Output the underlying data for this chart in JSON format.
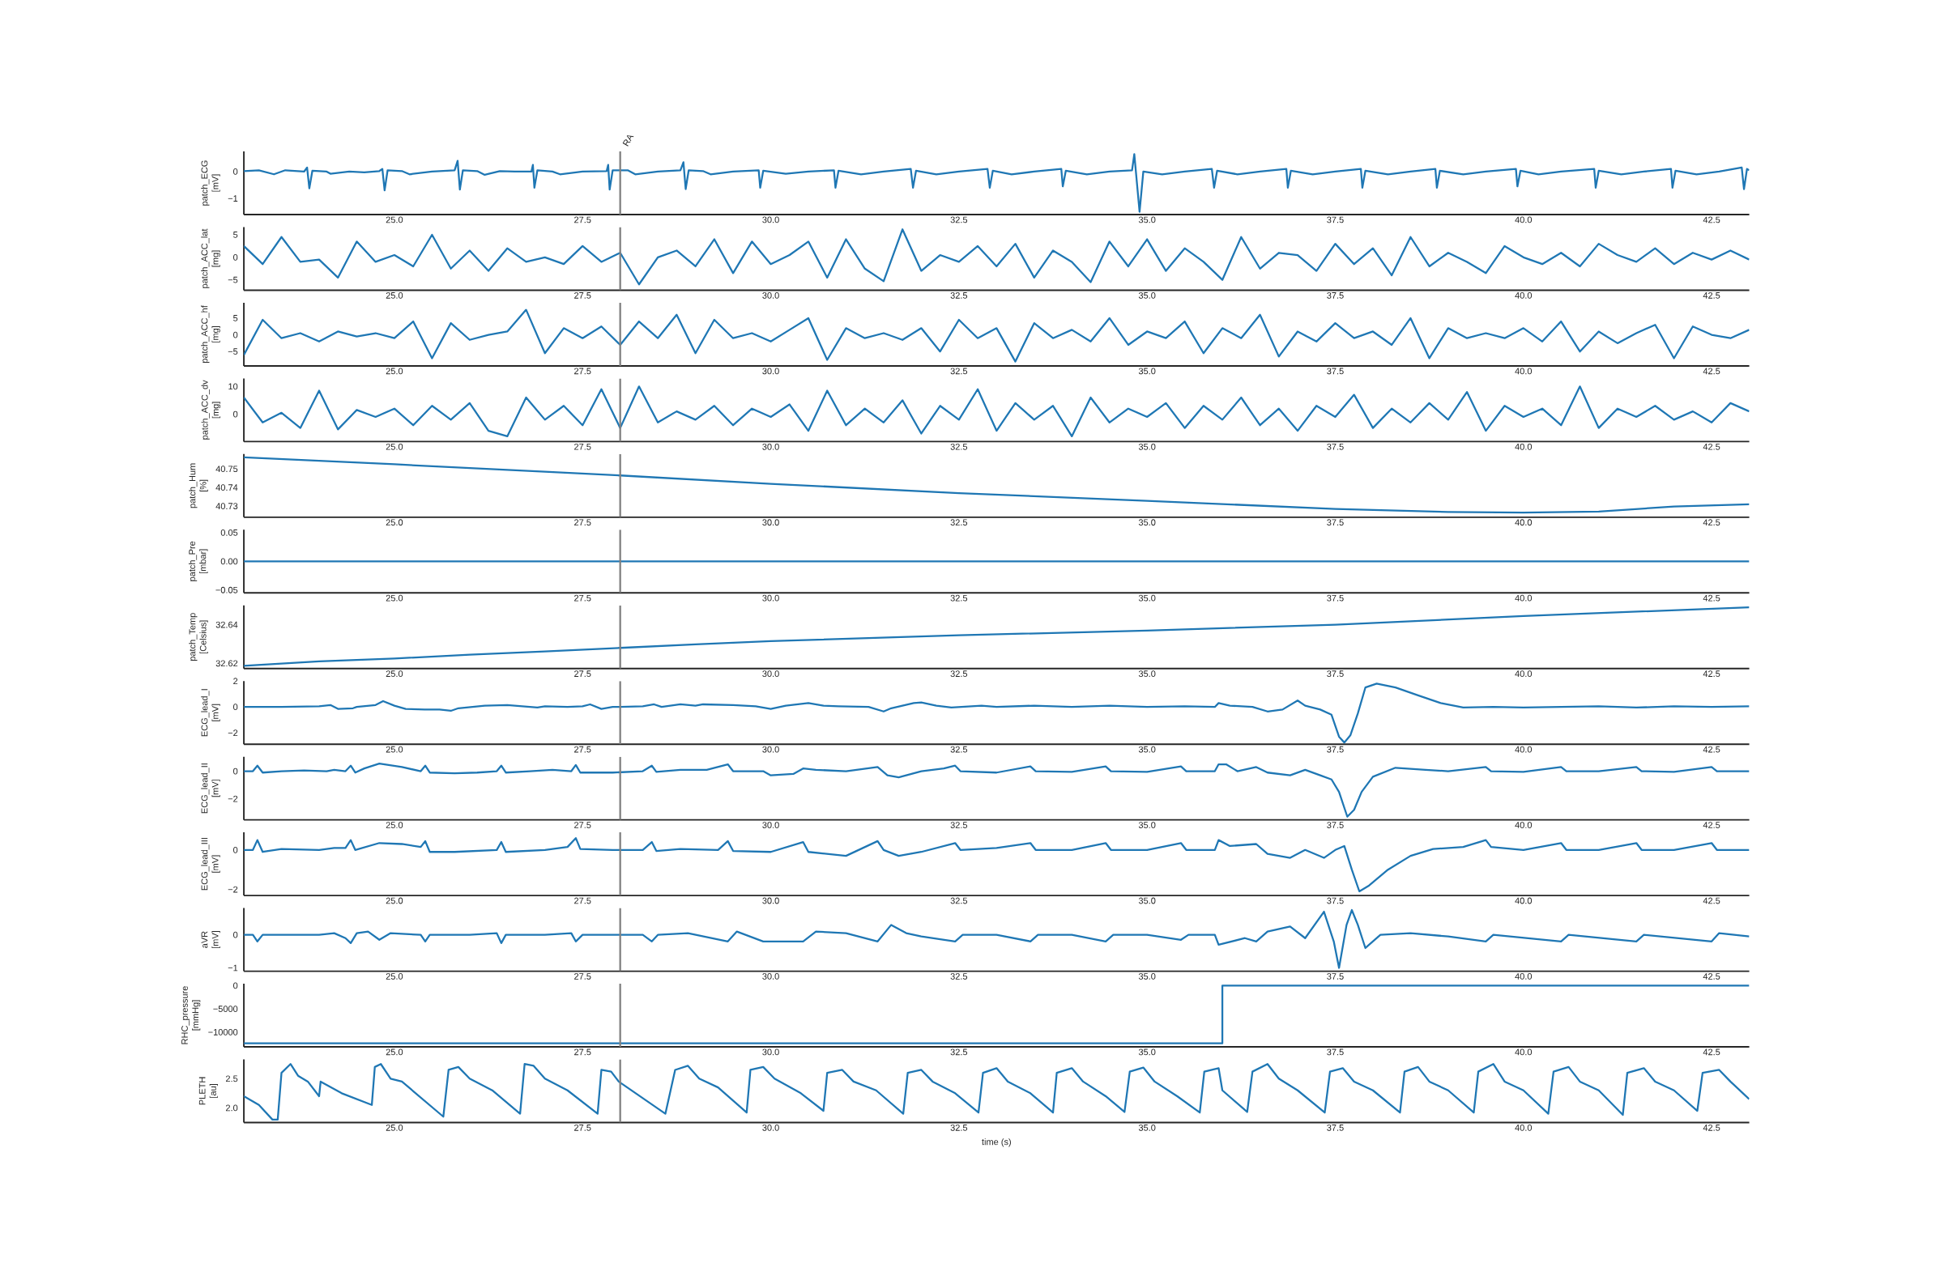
{
  "chart_data": [
    {
      "type": "line",
      "ylabel": "patch_ECG [mV]",
      "color": "#1f77b4",
      "xlim": [
        23.0,
        43.0
      ],
      "ylim": [
        -1.6,
        0.75
      ],
      "yticks": [
        {
          "value": -1,
          "label": "−1"
        },
        0
      ],
      "xticks": [
        {
          "value": 25,
          "label": "25.0"
        },
        {
          "value": 27.5,
          "label": "27.5"
        },
        {
          "value": 30,
          "label": "30.0"
        },
        {
          "value": 32.5,
          "label": "32.5"
        },
        {
          "value": 35,
          "label": "35.0"
        },
        {
          "value": 37.5,
          "label": "37.5"
        },
        {
          "value": 40,
          "label": "40.0"
        },
        {
          "value": 42.5,
          "label": "42.5"
        }
      ],
      "ref_lines": [
        {
          "axis": "x",
          "value": 28.0,
          "color": "#808080",
          "label": "RA"
        }
      ],
      "x": [
        23.0,
        23.2,
        23.4,
        23.55,
        23.8,
        23.84,
        23.87,
        23.91,
        24.1,
        24.15,
        24.4,
        24.6,
        24.8,
        24.84,
        24.87,
        24.91,
        25.1,
        25.2,
        25.5,
        25.8,
        25.84,
        25.87,
        25.91,
        26.1,
        26.2,
        26.4,
        26.6,
        26.82,
        26.84,
        26.86,
        26.9,
        27.1,
        27.2,
        27.5,
        27.82,
        27.84,
        27.86,
        27.9,
        28.1,
        28.2,
        28.5,
        28.8,
        28.84,
        28.87,
        28.91,
        29.1,
        29.2,
        29.5,
        29.84,
        29.86,
        29.9,
        30.2,
        30.5,
        30.84,
        30.86,
        30.9,
        31.2,
        31.5,
        31.86,
        31.89,
        31.93,
        32.2,
        32.5,
        32.88,
        32.91,
        32.95,
        33.2,
        33.5,
        33.86,
        33.88,
        33.92,
        34.2,
        34.5,
        34.8,
        34.83,
        34.9,
        34.95,
        35.2,
        35.5,
        35.86,
        35.89,
        35.93,
        36.2,
        36.5,
        36.85,
        36.87,
        36.91,
        37.2,
        37.5,
        37.84,
        37.86,
        37.9,
        38.2,
        38.5,
        38.83,
        38.85,
        38.89,
        39.2,
        39.5,
        39.9,
        39.92,
        39.96,
        40.2,
        40.5,
        40.94,
        40.96,
        41.0,
        41.3,
        41.6,
        41.96,
        41.98,
        42.02,
        42.3,
        42.6,
        42.9,
        42.93,
        42.97,
        43.0
      ],
      "values": [
        0.02,
        0.05,
        -0.1,
        0.05,
        0.0,
        0.15,
        -0.62,
        0.03,
        0.0,
        -0.08,
        0.0,
        -0.03,
        0.02,
        0.1,
        -0.7,
        0.05,
        0.02,
        -0.1,
        0.0,
        0.05,
        0.4,
        -0.67,
        0.05,
        0.02,
        -0.12,
        0.02,
        0.0,
        0.0,
        0.25,
        -0.6,
        0.05,
        0.0,
        -0.1,
        0.0,
        0.02,
        0.25,
        -0.67,
        0.05,
        0.05,
        -0.1,
        0.0,
        0.05,
        0.35,
        -0.65,
        0.05,
        0.02,
        -0.1,
        0.0,
        0.05,
        -0.6,
        0.03,
        -0.08,
        0.0,
        0.05,
        -0.6,
        0.03,
        -0.1,
        0.0,
        0.1,
        -0.6,
        0.03,
        -0.1,
        0.0,
        0.1,
        -0.6,
        0.03,
        -0.1,
        0.0,
        0.1,
        -0.55,
        0.03,
        -0.1,
        0.0,
        0.05,
        0.65,
        -1.5,
        0.0,
        -0.1,
        0.0,
        0.1,
        -0.6,
        0.03,
        -0.1,
        0.0,
        0.1,
        -0.6,
        0.03,
        -0.1,
        0.0,
        0.1,
        -0.6,
        0.03,
        -0.1,
        0.0,
        0.1,
        -0.6,
        0.03,
        -0.1,
        0.0,
        0.1,
        -0.55,
        0.03,
        -0.1,
        0.0,
        0.1,
        -0.6,
        0.03,
        -0.1,
        0.0,
        0.1,
        -0.6,
        0.03,
        -0.1,
        0.0,
        0.15,
        -0.65,
        0.1,
        0.05
      ]
    },
    {
      "type": "line",
      "ylabel": "patch_ACC_lat [mg]",
      "color": "#1f77b4",
      "xlim": [
        23.0,
        43.0
      ],
      "ylim": [
        -7.3,
        6.7
      ],
      "yticks": [
        {
          "value": -5,
          "label": "−5"
        },
        0,
        5
      ],
      "xticks": [
        {
          "value": 25,
          "label": "25.0"
        },
        {
          "value": 27.5,
          "label": "27.5"
        },
        {
          "value": 30,
          "label": "30.0"
        },
        {
          "value": 32.5,
          "label": "32.5"
        },
        {
          "value": 35,
          "label": "35.0"
        },
        {
          "value": 37.5,
          "label": "37.5"
        },
        {
          "value": 40,
          "label": "40.0"
        },
        {
          "value": 42.5,
          "label": "42.5"
        }
      ],
      "ref_lines": [
        {
          "axis": "x",
          "value": 28.0,
          "color": "#808080"
        }
      ],
      "x": [
        23.0,
        23.25,
        23.5,
        23.75,
        24.0,
        24.25,
        24.5,
        24.75,
        25.0,
        25.25,
        25.5,
        25.75,
        26.0,
        26.25,
        26.5,
        26.75,
        27.0,
        27.25,
        27.5,
        27.75,
        28.0,
        28.25,
        28.5,
        28.75,
        29.0,
        29.25,
        29.5,
        29.75,
        30.0,
        30.25,
        30.5,
        30.75,
        31.0,
        31.25,
        31.5,
        31.75,
        32.0,
        32.25,
        32.5,
        32.75,
        33.0,
        33.25,
        33.5,
        33.75,
        34.0,
        34.25,
        34.5,
        34.75,
        35.0,
        35.25,
        35.5,
        35.75,
        36.0,
        36.25,
        36.5,
        36.75,
        37.0,
        37.25,
        37.5,
        37.75,
        38.0,
        38.25,
        38.5,
        38.75,
        39.0,
        39.25,
        39.5,
        39.75,
        40.0,
        40.25,
        40.5,
        40.75,
        41.0,
        41.25,
        41.5,
        41.75,
        42.0,
        42.25,
        42.5,
        42.75,
        43.0
      ],
      "values": [
        2.5,
        -1.5,
        4.5,
        -1,
        -0.5,
        -4.5,
        3.5,
        -1,
        0.5,
        -2,
        5,
        -2.5,
        1.5,
        -3,
        2,
        -1,
        0,
        -1.5,
        2.5,
        -1,
        1,
        -6,
        0,
        1.5,
        -2,
        4,
        -3.5,
        3.5,
        -1.5,
        0.5,
        3.5,
        -4.5,
        4,
        -2.5,
        -5.3,
        6.2,
        -3,
        0.5,
        -1,
        2.5,
        -2,
        3,
        -4.5,
        1.5,
        -1,
        -5.5,
        3.5,
        -2,
        4,
        -3,
        2,
        -1,
        -5,
        4.5,
        -2.5,
        1,
        0.5,
        -3,
        3,
        -1.5,
        2,
        -4,
        4.5,
        -2,
        1,
        -1,
        -3.5,
        2.5,
        0,
        -1.5,
        1,
        -2,
        3,
        0.5,
        -1,
        2,
        -1.5,
        1,
        -0.5,
        1.5,
        -0.5
      ]
    },
    {
      "type": "line",
      "ylabel": "patch_ACC_hf [mg]",
      "color": "#1f77b4",
      "xlim": [
        23.0,
        43.0
      ],
      "ylim": [
        -9.3,
        9.6
      ],
      "yticks": [
        {
          "value": -5,
          "label": "−5"
        },
        0,
        5
      ],
      "xticks": [
        {
          "value": 25,
          "label": "25.0"
        },
        {
          "value": 27.5,
          "label": "27.5"
        },
        {
          "value": 30,
          "label": "30.0"
        },
        {
          "value": 32.5,
          "label": "32.5"
        },
        {
          "value": 35,
          "label": "35.0"
        },
        {
          "value": 37.5,
          "label": "37.5"
        },
        {
          "value": 40,
          "label": "40.0"
        },
        {
          "value": 42.5,
          "label": "42.5"
        }
      ],
      "ref_lines": [
        {
          "axis": "x",
          "value": 28.0,
          "color": "#808080"
        }
      ],
      "x": [
        23.0,
        23.25,
        23.5,
        23.75,
        24.0,
        24.25,
        24.5,
        24.75,
        25.0,
        25.25,
        25.5,
        25.75,
        26.0,
        26.25,
        26.5,
        26.75,
        27.0,
        27.25,
        27.5,
        27.75,
        28.0,
        28.25,
        28.5,
        28.75,
        29.0,
        29.25,
        29.5,
        29.75,
        30.0,
        30.25,
        30.5,
        30.75,
        31.0,
        31.25,
        31.5,
        31.75,
        32.0,
        32.25,
        32.5,
        32.75,
        33.0,
        33.25,
        33.5,
        33.75,
        34.0,
        34.25,
        34.5,
        34.75,
        35.0,
        35.25,
        35.5,
        35.75,
        36.0,
        36.25,
        36.5,
        36.75,
        37.0,
        37.25,
        37.5,
        37.75,
        38.0,
        38.25,
        38.5,
        38.75,
        39.0,
        39.25,
        39.5,
        39.75,
        40.0,
        40.25,
        40.5,
        40.75,
        41.0,
        41.25,
        41.5,
        41.75,
        42.0,
        42.25,
        42.5,
        42.75,
        43.0
      ],
      "values": [
        -6,
        4.5,
        -1,
        0.5,
        -2,
        1,
        -0.5,
        0.5,
        -1,
        4,
        -7,
        3.5,
        -1.5,
        0,
        1,
        7.5,
        -5.5,
        2,
        -1,
        2.5,
        -3,
        4,
        -1,
        6,
        -5.5,
        4.5,
        -1,
        0.5,
        -2,
        1.5,
        5,
        -7.5,
        2,
        -1,
        0.5,
        -1.5,
        2,
        -5,
        4.5,
        -1,
        2,
        -8,
        3.5,
        -1,
        1.5,
        -2,
        5,
        -3,
        1,
        -1,
        4,
        -5.5,
        2,
        -1,
        6,
        -6.5,
        1,
        -2,
        3.5,
        -1,
        1,
        -3,
        5,
        -7,
        2,
        -1,
        0.5,
        -1,
        2,
        -2,
        4,
        -5,
        1,
        -2.5,
        0.5,
        3,
        -7,
        2.5,
        0,
        -1,
        1.5
      ]
    },
    {
      "type": "line",
      "ylabel": "patch_ACC_dv [mg]",
      "color": "#1f77b4",
      "xlim": [
        23.0,
        43.0
      ],
      "ylim": [
        -9.9,
        12.9
      ],
      "yticks": [
        0,
        10
      ],
      "xticks": [
        {
          "value": 25,
          "label": "25.0"
        },
        {
          "value": 27.5,
          "label": "27.5"
        },
        {
          "value": 30,
          "label": "30.0"
        },
        {
          "value": 32.5,
          "label": "32.5"
        },
        {
          "value": 35,
          "label": "35.0"
        },
        {
          "value": 37.5,
          "label": "37.5"
        },
        {
          "value": 40,
          "label": "40.0"
        },
        {
          "value": 42.5,
          "label": "42.5"
        }
      ],
      "ref_lines": [
        {
          "axis": "x",
          "value": 28.0,
          "color": "#808080"
        }
      ],
      "x": [
        23.0,
        23.25,
        23.5,
        23.75,
        24.0,
        24.25,
        24.5,
        24.75,
        25.0,
        25.25,
        25.5,
        25.75,
        26.0,
        26.25,
        26.5,
        26.75,
        27.0,
        27.25,
        27.5,
        27.75,
        28.0,
        28.25,
        28.5,
        28.75,
        29.0,
        29.25,
        29.5,
        29.75,
        30.0,
        30.25,
        30.5,
        30.75,
        31.0,
        31.25,
        31.5,
        31.75,
        32.0,
        32.25,
        32.5,
        32.75,
        33.0,
        33.25,
        33.5,
        33.75,
        34.0,
        34.25,
        34.5,
        34.75,
        35.0,
        35.25,
        35.5,
        35.75,
        36.0,
        36.25,
        36.5,
        36.75,
        37.0,
        37.25,
        37.5,
        37.75,
        38.0,
        38.25,
        38.5,
        38.75,
        39.0,
        39.25,
        39.5,
        39.75,
        40.0,
        40.25,
        40.5,
        40.75,
        41.0,
        41.25,
        41.5,
        41.75,
        42.0,
        42.25,
        42.5,
        42.75,
        43.0
      ],
      "values": [
        6,
        -3,
        0.5,
        -5,
        8.5,
        -5.5,
        1.5,
        -1,
        2,
        -4,
        3,
        -2,
        4,
        -6,
        -8,
        6,
        -2,
        3,
        -4,
        9,
        -5,
        10,
        -3,
        1,
        -2,
        3,
        -4,
        2,
        -1,
        3.5,
        -6,
        8.5,
        -4,
        2,
        -3,
        5,
        -7,
        3,
        -2,
        9,
        -6,
        4,
        -2,
        3,
        -8,
        6,
        -3,
        2,
        -1,
        4,
        -5,
        3,
        -2,
        6,
        -4,
        2,
        -6,
        3,
        -1,
        7,
        -5,
        2,
        -3,
        4,
        -2,
        8,
        -6,
        3,
        -1,
        2,
        -4,
        10,
        -5,
        2,
        -1,
        3,
        -2,
        1,
        -3,
        4,
        1
      ]
    },
    {
      "type": "line",
      "ylabel": "patch_Hum [%]",
      "color": "#1f77b4",
      "xlim": [
        23.0,
        43.0
      ],
      "ylim": [
        40.724,
        40.758
      ],
      "yticks": [
        40.73,
        40.74,
        40.75
      ],
      "xticks": [
        {
          "value": 25,
          "label": "25.0"
        },
        {
          "value": 27.5,
          "label": "27.5"
        },
        {
          "value": 30,
          "label": "30.0"
        },
        {
          "value": 32.5,
          "label": "32.5"
        },
        {
          "value": 35,
          "label": "35.0"
        },
        {
          "value": 37.5,
          "label": "37.5"
        },
        {
          "value": 40,
          "label": "40.0"
        },
        {
          "value": 42.5,
          "label": "42.5"
        }
      ],
      "ref_lines": [
        {
          "axis": "x",
          "value": 28.0,
          "color": "#808080"
        }
      ],
      "x": [
        23.0,
        25.0,
        27.0,
        28.0,
        30.0,
        32.5,
        35.0,
        37.5,
        39.0,
        40.0,
        41.0,
        42.0,
        43.0
      ],
      "values": [
        40.7562,
        40.7525,
        40.7485,
        40.7465,
        40.742,
        40.737,
        40.7328,
        40.7285,
        40.7268,
        40.7265,
        40.727,
        40.7298,
        40.731
      ]
    },
    {
      "type": "line",
      "ylabel": "patch_Pre [mbar]",
      "color": "#1f77b4",
      "xlim": [
        23.0,
        43.0
      ],
      "ylim": [
        -0.055,
        0.055
      ],
      "yticks": [
        {
          "value": -0.05,
          "label": "−0.05"
        },
        {
          "value": 0,
          "label": "0.00"
        },
        {
          "value": 0.05,
          "label": "0.05"
        }
      ],
      "xticks": [
        {
          "value": 25,
          "label": "25.0"
        },
        {
          "value": 27.5,
          "label": "27.5"
        },
        {
          "value": 30,
          "label": "30.0"
        },
        {
          "value": 32.5,
          "label": "32.5"
        },
        {
          "value": 35,
          "label": "35.0"
        },
        {
          "value": 37.5,
          "label": "37.5"
        },
        {
          "value": 40,
          "label": "40.0"
        },
        {
          "value": 42.5,
          "label": "42.5"
        }
      ],
      "ref_lines": [
        {
          "axis": "x",
          "value": 28.0,
          "color": "#808080"
        }
      ],
      "x": [
        23.0,
        43.0
      ],
      "values": [
        0.0,
        0.0
      ]
    },
    {
      "type": "line",
      "ylabel": "patch_Temp [Celsius]",
      "color": "#1f77b4",
      "xlim": [
        23.0,
        43.0
      ],
      "ylim": [
        32.6173,
        32.65
      ],
      "yticks": [
        32.62,
        32.64
      ],
      "xticks": [
        {
          "value": 25,
          "label": "25.0"
        },
        {
          "value": 27.5,
          "label": "27.5"
        },
        {
          "value": 30,
          "label": "30.0"
        },
        {
          "value": 32.5,
          "label": "32.5"
        },
        {
          "value": 35,
          "label": "35.0"
        },
        {
          "value": 37.5,
          "label": "37.5"
        },
        {
          "value": 40,
          "label": "40.0"
        },
        {
          "value": 42.5,
          "label": "42.5"
        }
      ],
      "ref_lines": [
        {
          "axis": "x",
          "value": 28.0,
          "color": "#808080"
        }
      ],
      "x": [
        23.0,
        24.0,
        25.0,
        26.0,
        27.0,
        28.0,
        29.0,
        30.0,
        32.5,
        35.0,
        37.5,
        40.0,
        43.0
      ],
      "values": [
        32.6187,
        32.621,
        32.6225,
        32.6245,
        32.6262,
        32.628,
        32.6298,
        32.6315,
        32.6345,
        32.637,
        32.64,
        32.6445,
        32.649
      ]
    },
    {
      "type": "line",
      "ylabel": "ECG_lead_I [mV]",
      "color": "#1f77b4",
      "xlim": [
        23.0,
        43.0
      ],
      "ylim": [
        -2.88,
        2.0
      ],
      "yticks": [
        {
          "value": -2,
          "label": "−2"
        },
        0,
        2
      ],
      "xticks": [
        {
          "value": 25,
          "label": "25.0"
        },
        {
          "value": 27.5,
          "label": "27.5"
        },
        {
          "value": 30,
          "label": "30.0"
        },
        {
          "value": 32.5,
          "label": "32.5"
        },
        {
          "value": 35,
          "label": "35.0"
        },
        {
          "value": 37.5,
          "label": "37.5"
        },
        {
          "value": 40,
          "label": "40.0"
        },
        {
          "value": 42.5,
          "label": "42.5"
        }
      ],
      "ref_lines": [
        {
          "axis": "x",
          "value": 28.0,
          "color": "#808080"
        }
      ],
      "x": [
        23.0,
        23.5,
        24.0,
        24.15,
        24.25,
        24.45,
        24.5,
        24.75,
        24.85,
        25.0,
        25.15,
        25.4,
        25.6,
        25.75,
        25.85,
        26.2,
        26.5,
        26.9,
        27.0,
        27.3,
        27.5,
        27.6,
        27.75,
        27.9,
        28.0,
        28.3,
        28.45,
        28.55,
        28.8,
        29.0,
        29.1,
        29.5,
        29.8,
        30.0,
        30.2,
        30.5,
        30.7,
        30.9,
        31.3,
        31.5,
        31.6,
        31.9,
        32.0,
        32.2,
        32.4,
        32.8,
        33.0,
        33.5,
        34.0,
        34.5,
        35.0,
        35.5,
        35.9,
        35.95,
        36.1,
        36.4,
        36.6,
        36.8,
        37.0,
        37.1,
        37.3,
        37.45,
        37.55,
        37.62,
        37.7,
        37.8,
        37.9,
        38.05,
        38.3,
        38.6,
        38.9,
        39.2,
        39.6,
        40.0,
        40.5,
        41.0,
        41.5,
        42.0,
        42.5,
        43.0
      ],
      "values": [
        0,
        0.0,
        0.05,
        0.15,
        -0.15,
        -0.1,
        0.0,
        0.15,
        0.45,
        0.1,
        -0.15,
        -0.2,
        -0.2,
        -0.3,
        -0.1,
        0.1,
        0.15,
        -0.05,
        0.05,
        0.0,
        0.05,
        0.2,
        -0.15,
        0.0,
        0.0,
        0.05,
        0.2,
        0.0,
        0.2,
        0.1,
        0.2,
        0.15,
        0.05,
        -0.15,
        0.1,
        0.3,
        0.1,
        0.05,
        0.0,
        -0.35,
        -0.1,
        0.3,
        0.35,
        0.1,
        -0.05,
        0.1,
        0.0,
        0.1,
        0.0,
        0.1,
        0.0,
        0.05,
        0.0,
        0.3,
        0.1,
        0.0,
        -0.35,
        -0.2,
        0.5,
        0.1,
        -0.2,
        -0.6,
        -2.3,
        -2.75,
        -2.2,
        -0.5,
        1.5,
        1.8,
        1.5,
        0.9,
        0.3,
        -0.05,
        0.0,
        -0.05,
        0.0,
        0.05,
        -0.05,
        0.05,
        0.0,
        0.05
      ]
    },
    {
      "type": "line",
      "ylabel": "ECG_lead_II [mV]",
      "color": "#1f77b4",
      "xlim": [
        23.0,
        43.0
      ],
      "ylim": [
        -3.53,
        1.05
      ],
      "yticks": [
        {
          "value": -2,
          "label": "−2"
        },
        0
      ],
      "xticks": [
        {
          "value": 25,
          "label": "25.0"
        },
        {
          "value": 27.5,
          "label": "27.5"
        },
        {
          "value": 30,
          "label": "30.0"
        },
        {
          "value": 32.5,
          "label": "32.5"
        },
        {
          "value": 35,
          "label": "35.0"
        },
        {
          "value": 37.5,
          "label": "37.5"
        },
        {
          "value": 40,
          "label": "40.0"
        },
        {
          "value": 42.5,
          "label": "42.5"
        }
      ],
      "ref_lines": [
        {
          "axis": "x",
          "value": 28.0,
          "color": "#808080"
        }
      ],
      "x": [
        23.0,
        23.12,
        23.18,
        23.25,
        23.5,
        23.8,
        24.1,
        24.2,
        24.35,
        24.42,
        24.48,
        24.6,
        24.8,
        25.1,
        25.35,
        25.41,
        25.47,
        25.8,
        26.1,
        26.36,
        26.42,
        26.48,
        26.8,
        27.1,
        27.35,
        27.41,
        27.47,
        27.9,
        28.3,
        28.42,
        28.48,
        28.8,
        29.15,
        29.43,
        29.5,
        29.9,
        30.0,
        30.3,
        30.43,
        30.6,
        31.0,
        31.42,
        31.55,
        31.7,
        32.0,
        32.3,
        32.45,
        32.52,
        33.0,
        33.45,
        33.52,
        34.0,
        34.45,
        34.52,
        35.0,
        35.45,
        35.52,
        35.9,
        35.95,
        36.05,
        36.2,
        36.45,
        36.6,
        36.9,
        37.1,
        37.3,
        37.45,
        37.55,
        37.66,
        37.75,
        37.85,
        38.0,
        38.3,
        38.7,
        39.0,
        39.5,
        39.57,
        40.0,
        40.5,
        40.57,
        41.0,
        41.5,
        41.57,
        42.0,
        42.5,
        42.57,
        43.0
      ],
      "values": [
        0.0,
        0.0,
        0.4,
        -0.1,
        0.0,
        0.05,
        0.0,
        0.1,
        0.0,
        0.4,
        -0.1,
        0.2,
        0.55,
        0.3,
        0.0,
        0.4,
        -0.1,
        -0.15,
        -0.1,
        0.0,
        0.4,
        -0.1,
        0.0,
        0.1,
        0.0,
        0.45,
        -0.1,
        -0.1,
        0.0,
        0.4,
        -0.05,
        0.1,
        0.1,
        0.5,
        0.0,
        0.0,
        -0.3,
        -0.2,
        0.2,
        0.1,
        0.0,
        0.3,
        -0.3,
        -0.45,
        0.0,
        0.2,
        0.4,
        0.0,
        -0.1,
        0.35,
        0.0,
        -0.05,
        0.35,
        0.0,
        -0.05,
        0.35,
        0.0,
        0.0,
        0.5,
        0.5,
        0.0,
        0.3,
        -0.1,
        -0.3,
        0.1,
        -0.3,
        -0.6,
        -1.5,
        -3.3,
        -2.8,
        -1.5,
        -0.4,
        0.25,
        0.1,
        0.0,
        0.3,
        0.0,
        -0.05,
        0.3,
        0.0,
        0.0,
        0.3,
        0.0,
        -0.05,
        0.3,
        0.0,
        0.0
      ]
    },
    {
      "type": "line",
      "ylabel": "ECG_lead_III [mV]",
      "color": "#1f77b4",
      "xlim": [
        23.0,
        43.0
      ],
      "ylim": [
        -2.31,
        0.89
      ],
      "yticks": [
        {
          "value": -2,
          "label": "−2"
        },
        0
      ],
      "xticks": [
        {
          "value": 25,
          "label": "25.0"
        },
        {
          "value": 27.5,
          "label": "27.5"
        },
        {
          "value": 30,
          "label": "30.0"
        },
        {
          "value": 32.5,
          "label": "32.5"
        },
        {
          "value": 35,
          "label": "35.0"
        },
        {
          "value": 37.5,
          "label": "37.5"
        },
        {
          "value": 40,
          "label": "40.0"
        },
        {
          "value": 42.5,
          "label": "42.5"
        }
      ],
      "ref_lines": [
        {
          "axis": "x",
          "value": 28.0,
          "color": "#808080"
        }
      ],
      "x": [
        23.0,
        23.12,
        23.18,
        23.25,
        23.5,
        24.0,
        24.2,
        24.35,
        24.42,
        24.48,
        24.8,
        25.1,
        25.35,
        25.41,
        25.47,
        25.8,
        26.36,
        26.42,
        26.48,
        27.0,
        27.3,
        27.41,
        27.47,
        27.9,
        28.3,
        28.42,
        28.48,
        28.8,
        29.3,
        29.43,
        29.5,
        30.0,
        30.43,
        30.5,
        31.0,
        31.42,
        31.5,
        31.7,
        32.0,
        32.45,
        32.52,
        33.0,
        33.45,
        33.52,
        34.0,
        34.45,
        34.52,
        35.0,
        35.45,
        35.52,
        35.9,
        35.95,
        36.1,
        36.45,
        36.6,
        36.9,
        37.1,
        37.35,
        37.5,
        37.62,
        37.72,
        37.82,
        37.95,
        38.2,
        38.5,
        38.8,
        39.2,
        39.5,
        39.57,
        40.0,
        40.5,
        40.57,
        41.0,
        41.5,
        41.57,
        42.0,
        42.5,
        42.57,
        43.0
      ],
      "values": [
        0.0,
        0.0,
        0.5,
        -0.1,
        0.05,
        0.0,
        0.1,
        0.1,
        0.5,
        0.0,
        0.35,
        0.3,
        0.15,
        0.45,
        -0.1,
        -0.1,
        0.0,
        0.4,
        -0.1,
        0.0,
        0.15,
        0.6,
        0.05,
        0.0,
        0.0,
        0.4,
        -0.05,
        0.05,
        0.0,
        0.45,
        -0.05,
        -0.1,
        0.4,
        -0.1,
        -0.3,
        0.45,
        0.0,
        -0.3,
        -0.1,
        0.35,
        0.0,
        0.1,
        0.35,
        0.0,
        0.0,
        0.35,
        0.0,
        0.0,
        0.35,
        0.0,
        0.0,
        0.5,
        0.2,
        0.3,
        -0.2,
        -0.4,
        0.0,
        -0.4,
        0.0,
        0.2,
        -1.0,
        -2.1,
        -1.8,
        -1.0,
        -0.3,
        0.05,
        0.15,
        0.5,
        0.15,
        0.0,
        0.35,
        0.0,
        0.0,
        0.35,
        0.0,
        0.0,
        0.35,
        0.0,
        0.0
      ]
    },
    {
      "type": "line",
      "ylabel": "aVR [mV]",
      "color": "#1f77b4",
      "xlim": [
        23.0,
        43.0
      ],
      "ylim": [
        -1.1,
        0.81
      ],
      "yticks": [
        {
          "value": -1,
          "label": "−1"
        },
        0
      ],
      "xticks": [
        {
          "value": 25,
          "label": "25.0"
        },
        {
          "value": 27.5,
          "label": "27.5"
        },
        {
          "value": 30,
          "label": "30.0"
        },
        {
          "value": 32.5,
          "label": "32.5"
        },
        {
          "value": 35,
          "label": "35.0"
        },
        {
          "value": 37.5,
          "label": "37.5"
        },
        {
          "value": 40,
          "label": "40.0"
        },
        {
          "value": 42.5,
          "label": "42.5"
        }
      ],
      "ref_lines": [
        {
          "axis": "x",
          "value": 28.0,
          "color": "#808080"
        }
      ],
      "x": [
        23.0,
        23.12,
        23.18,
        23.25,
        24.0,
        24.2,
        24.35,
        24.42,
        24.5,
        24.65,
        24.8,
        24.95,
        25.35,
        25.41,
        25.47,
        26.0,
        26.36,
        26.42,
        26.48,
        27.0,
        27.35,
        27.41,
        27.5,
        27.9,
        28.3,
        28.42,
        28.5,
        28.9,
        29.43,
        29.55,
        29.9,
        30.43,
        30.6,
        31.0,
        31.42,
        31.6,
        31.8,
        32.0,
        32.45,
        32.55,
        33.0,
        33.45,
        33.55,
        34.0,
        34.45,
        34.55,
        35.0,
        35.45,
        35.55,
        35.9,
        35.95,
        36.3,
        36.45,
        36.6,
        36.9,
        37.1,
        37.35,
        37.48,
        37.55,
        37.65,
        37.72,
        37.8,
        37.9,
        38.1,
        38.5,
        39.0,
        39.5,
        39.6,
        40.5,
        40.6,
        41.5,
        41.6,
        42.5,
        42.6,
        43.0
      ],
      "values": [
        0.0,
        0.0,
        -0.2,
        0.0,
        0.0,
        0.05,
        -0.1,
        -0.25,
        0.05,
        0.1,
        -0.15,
        0.05,
        0.0,
        -0.2,
        0.0,
        0.0,
        0.05,
        -0.25,
        0.0,
        0.0,
        0.05,
        -0.2,
        0.0,
        0.0,
        0.0,
        -0.2,
        0.0,
        0.05,
        -0.2,
        0.1,
        -0.2,
        -0.2,
        0.1,
        0.05,
        -0.2,
        0.3,
        0.05,
        -0.05,
        -0.2,
        0.0,
        0.0,
        -0.2,
        0.0,
        0.0,
        -0.2,
        0.0,
        0.0,
        -0.15,
        0.0,
        0.0,
        -0.3,
        -0.1,
        -0.2,
        0.1,
        0.25,
        -0.1,
        0.7,
        -0.2,
        -1.0,
        0.3,
        0.75,
        0.3,
        -0.4,
        0.0,
        0.05,
        -0.05,
        -0.2,
        0.0,
        -0.2,
        0.0,
        -0.2,
        0.0,
        -0.2,
        0.05,
        -0.05
      ]
    },
    {
      "type": "line",
      "ylabel": "RHC_pressure [mmHg]",
      "color": "#1f77b4",
      "xlim": [
        23.0,
        43.0
      ],
      "ylim": [
        -13150,
        400
      ],
      "yticks": [
        {
          "value": -10000,
          "label": "−10000"
        },
        {
          "value": -5000,
          "label": "−5000"
        },
        0
      ],
      "xticks": [
        {
          "value": 25,
          "label": "25.0"
        },
        {
          "value": 27.5,
          "label": "27.5"
        },
        {
          "value": 30,
          "label": "30.0"
        },
        {
          "value": 32.5,
          "label": "32.5"
        },
        {
          "value": 35,
          "label": "35.0"
        },
        {
          "value": 37.5,
          "label": "37.5"
        },
        {
          "value": 40,
          "label": "40.0"
        },
        {
          "value": 42.5,
          "label": "42.5"
        }
      ],
      "ref_lines": [
        {
          "axis": "x",
          "value": 28.0,
          "color": "#808080"
        }
      ],
      "x": [
        23.0,
        36.0,
        36.0,
        43.0
      ],
      "values": [
        -12400,
        -12400,
        0,
        0
      ]
    },
    {
      "type": "line",
      "ylabel": "PLETH [au]",
      "xlabel": "time (s)",
      "color": "#1f77b4",
      "xlim": [
        23.0,
        43.0
      ],
      "ylim": [
        1.75,
        2.83
      ],
      "yticks": [
        {
          "value": 2,
          "label": "2.0"
        },
        2.5
      ],
      "xticks": [
        {
          "value": 25,
          "label": "25.0"
        },
        {
          "value": 27.5,
          "label": "27.5"
        },
        {
          "value": 30,
          "label": "30.0"
        },
        {
          "value": 32.5,
          "label": "32.5"
        },
        {
          "value": 35,
          "label": "35.0"
        },
        {
          "value": 37.5,
          "label": "37.5"
        },
        {
          "value": 40,
          "label": "40.0"
        },
        {
          "value": 42.5,
          "label": "42.5"
        }
      ],
      "ref_lines": [
        {
          "axis": "x",
          "value": 28.0,
          "color": "#808080"
        }
      ],
      "x": [
        23.0,
        23.2,
        23.38,
        23.45,
        23.5,
        23.62,
        23.72,
        23.85,
        24.0,
        24.02,
        24.3,
        24.7,
        24.74,
        24.82,
        24.95,
        25.1,
        25.65,
        25.72,
        25.85,
        26.0,
        26.3,
        26.67,
        26.73,
        26.85,
        27.0,
        27.3,
        27.7,
        27.75,
        27.88,
        27.98,
        28.6,
        28.73,
        28.9,
        29.05,
        29.3,
        29.68,
        29.73,
        29.9,
        30.05,
        30.4,
        30.7,
        30.75,
        30.95,
        31.1,
        31.4,
        31.76,
        31.82,
        32.0,
        32.15,
        32.45,
        32.76,
        32.82,
        33.0,
        33.15,
        33.45,
        33.75,
        33.8,
        34.0,
        34.15,
        34.45,
        34.7,
        34.77,
        34.95,
        35.1,
        35.4,
        35.7,
        35.76,
        35.95,
        36.0,
        36.33,
        36.4,
        36.6,
        36.75,
        37.0,
        37.36,
        37.43,
        37.6,
        37.75,
        38.0,
        38.36,
        38.42,
        38.6,
        38.75,
        39.0,
        39.34,
        39.4,
        39.6,
        39.75,
        40.0,
        40.33,
        40.4,
        40.6,
        40.75,
        41.0,
        41.32,
        41.38,
        41.6,
        41.75,
        42.0,
        42.31,
        42.38,
        42.6,
        42.75,
        43.0
      ],
      "values": [
        2.2,
        2.05,
        1.8,
        1.8,
        2.6,
        2.75,
        2.55,
        2.45,
        2.2,
        2.45,
        2.25,
        2.05,
        2.7,
        2.75,
        2.5,
        2.45,
        1.85,
        2.65,
        2.7,
        2.5,
        2.3,
        1.9,
        2.75,
        2.72,
        2.5,
        2.3,
        1.9,
        2.65,
        2.62,
        2.45,
        1.9,
        2.65,
        2.72,
        2.5,
        2.35,
        1.92,
        2.65,
        2.7,
        2.5,
        2.25,
        1.95,
        2.6,
        2.65,
        2.45,
        2.3,
        1.9,
        2.6,
        2.65,
        2.45,
        2.25,
        1.92,
        2.6,
        2.68,
        2.45,
        2.25,
        1.92,
        2.6,
        2.68,
        2.45,
        2.2,
        1.93,
        2.62,
        2.69,
        2.45,
        2.2,
        1.92,
        2.62,
        2.68,
        2.3,
        1.93,
        2.62,
        2.75,
        2.5,
        2.3,
        1.92,
        2.62,
        2.68,
        2.45,
        2.3,
        1.92,
        2.62,
        2.7,
        2.45,
        2.3,
        1.92,
        2.62,
        2.75,
        2.45,
        2.3,
        1.9,
        2.62,
        2.7,
        2.45,
        2.3,
        1.88,
        2.6,
        2.68,
        2.45,
        2.3,
        1.95,
        2.6,
        2.65,
        2.45,
        2.15
      ]
    }
  ]
}
